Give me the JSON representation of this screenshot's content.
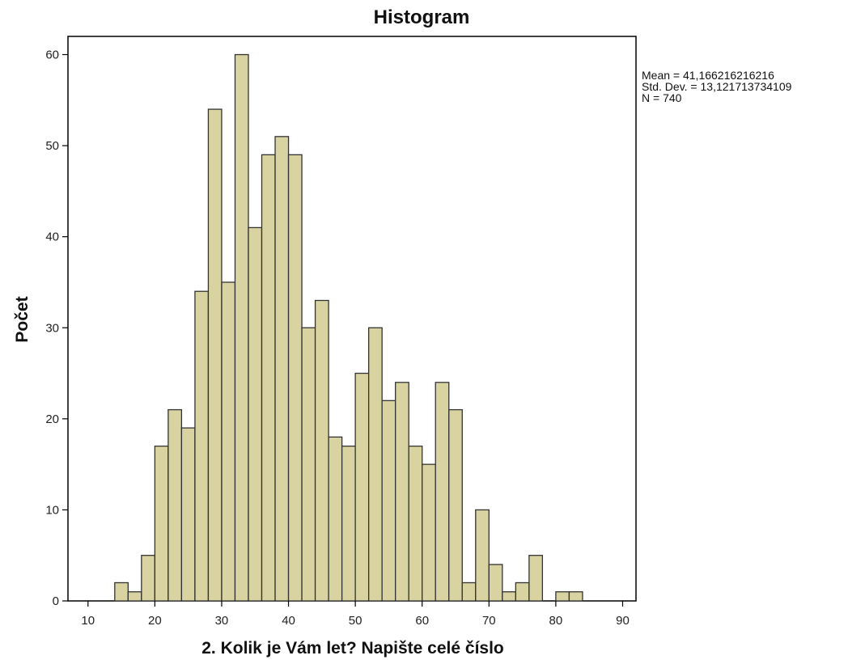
{
  "chart_data": {
    "type": "bar",
    "title": "Histogram",
    "xlabel": "2. Kolik je Vám let? Napište celé číslo",
    "ylabel": "Počet",
    "xlim": [
      7,
      92
    ],
    "ylim": [
      0,
      62
    ],
    "xticks": [
      10,
      20,
      30,
      40,
      50,
      60,
      70,
      80,
      90
    ],
    "yticks": [
      0,
      10,
      20,
      30,
      40,
      50,
      60
    ],
    "bin_width": 2,
    "bins": [
      {
        "start": 14,
        "count": 2
      },
      {
        "start": 16,
        "count": 1
      },
      {
        "start": 18,
        "count": 5
      },
      {
        "start": 20,
        "count": 17
      },
      {
        "start": 22,
        "count": 21
      },
      {
        "start": 24,
        "count": 19
      },
      {
        "start": 26,
        "count": 34
      },
      {
        "start": 28,
        "count": 54
      },
      {
        "start": 30,
        "count": 35
      },
      {
        "start": 32,
        "count": 60
      },
      {
        "start": 34,
        "count": 41
      },
      {
        "start": 36,
        "count": 49
      },
      {
        "start": 38,
        "count": 51
      },
      {
        "start": 40,
        "count": 49
      },
      {
        "start": 42,
        "count": 30
      },
      {
        "start": 44,
        "count": 33
      },
      {
        "start": 46,
        "count": 18
      },
      {
        "start": 48,
        "count": 17
      },
      {
        "start": 50,
        "count": 25
      },
      {
        "start": 52,
        "count": 30
      },
      {
        "start": 54,
        "count": 22
      },
      {
        "start": 56,
        "count": 24
      },
      {
        "start": 58,
        "count": 17
      },
      {
        "start": 60,
        "count": 15
      },
      {
        "start": 62,
        "count": 24
      },
      {
        "start": 64,
        "count": 21
      },
      {
        "start": 66,
        "count": 2
      },
      {
        "start": 68,
        "count": 10
      },
      {
        "start": 70,
        "count": 4
      },
      {
        "start": 72,
        "count": 1
      },
      {
        "start": 74,
        "count": 2
      },
      {
        "start": 76,
        "count": 5
      },
      {
        "start": 78,
        "count": 0
      },
      {
        "start": 80,
        "count": 1
      },
      {
        "start": 82,
        "count": 1
      }
    ],
    "bar_fill": "#d9d3a2",
    "bar_stroke": "#333333",
    "grid": false,
    "legend": "none",
    "stats": {
      "mean": "Mean = 41,166216216216",
      "std": "Std. Dev. = 13,121713734109",
      "n": "N = 740"
    }
  }
}
